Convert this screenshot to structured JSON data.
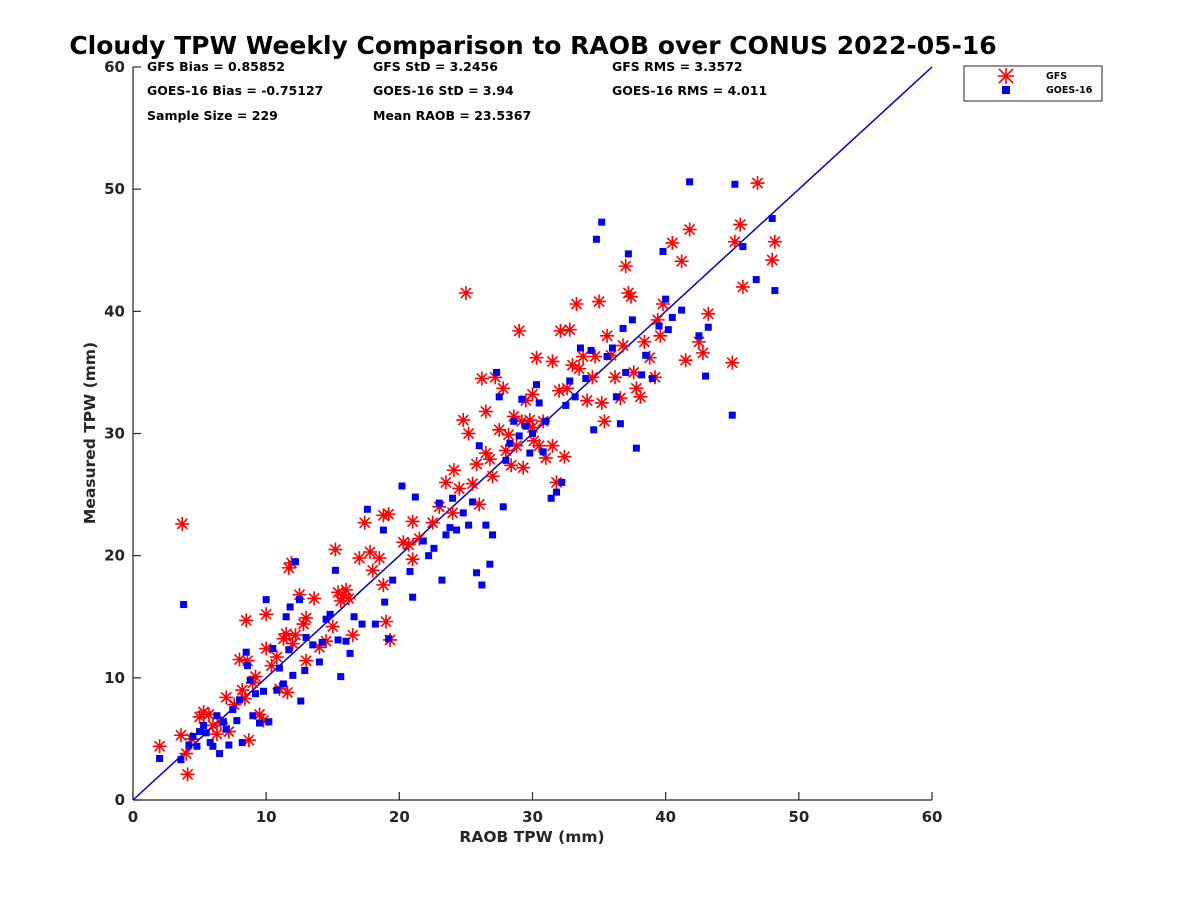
{
  "chart_data": {
    "type": "scatter",
    "title": "Cloudy TPW Weekly Comparison to RAOB over CONUS 2022-05-16",
    "xlabel": "RAOB TPW (mm)",
    "ylabel": "Measured TPW (mm)",
    "xlim": [
      0,
      60
    ],
    "ylim": [
      0,
      60
    ],
    "xticks": [
      "0",
      "10",
      "20",
      "30",
      "40",
      "50",
      "60"
    ],
    "yticks": [
      "0",
      "10",
      "20",
      "30",
      "40",
      "50",
      "60"
    ],
    "grid": false,
    "legend_position": "top-right outside",
    "stats": {
      "gfs_bias": "GFS Bias = 0.85852",
      "gfs_std": "GFS StD = 3.2456",
      "gfs_rms": "GFS RMS = 3.3572",
      "goes_bias": "GOES-16 Bias = -0.75127",
      "goes_std": "GOES-16 StD = 3.94",
      "goes_rms": "GOES-16 RMS = 4.011",
      "sample_size": "Sample Size = 229",
      "mean_raob": "Mean RAOB = 23.5367"
    },
    "reference_line": {
      "x": [
        0,
        60
      ],
      "y": [
        0,
        60
      ],
      "color": "#0000cc"
    },
    "series": [
      {
        "name": "GFS",
        "marker": "asterisk",
        "color": "#ff0000",
        "points": [
          [
            2.0,
            4.4
          ],
          [
            3.6,
            5.3
          ],
          [
            3.7,
            22.6
          ],
          [
            4.0,
            3.8
          ],
          [
            4.1,
            2.1
          ],
          [
            4.4,
            5.0
          ],
          [
            5.0,
            6.8
          ],
          [
            5.3,
            7.2
          ],
          [
            5.7,
            7.0
          ],
          [
            6.0,
            6.1
          ],
          [
            6.3,
            5.4
          ],
          [
            6.6,
            6.3
          ],
          [
            7.0,
            8.4
          ],
          [
            7.2,
            5.6
          ],
          [
            7.6,
            7.8
          ],
          [
            8.0,
            11.5
          ],
          [
            8.2,
            9.0
          ],
          [
            8.4,
            8.3
          ],
          [
            8.6,
            11.4
          ],
          [
            8.7,
            4.9
          ],
          [
            8.5,
            14.7
          ],
          [
            9.0,
            9.6
          ],
          [
            9.2,
            10.1
          ],
          [
            9.5,
            7.0
          ],
          [
            9.8,
            6.5
          ],
          [
            10.0,
            15.2
          ],
          [
            10.0,
            12.4
          ],
          [
            10.4,
            11.0
          ],
          [
            10.8,
            11.7
          ],
          [
            11.0,
            9.1
          ],
          [
            11.3,
            13.2
          ],
          [
            11.5,
            13.6
          ],
          [
            11.6,
            8.8
          ],
          [
            11.7,
            19.0
          ],
          [
            11.9,
            19.4
          ],
          [
            12.0,
            12.8
          ],
          [
            12.2,
            13.5
          ],
          [
            12.5,
            16.8
          ],
          [
            12.8,
            14.4
          ],
          [
            13.0,
            11.4
          ],
          [
            13.0,
            14.9
          ],
          [
            13.6,
            16.5
          ],
          [
            14.0,
            12.5
          ],
          [
            14.5,
            13.0
          ],
          [
            15.0,
            14.2
          ],
          [
            15.2,
            20.5
          ],
          [
            15.4,
            17.0
          ],
          [
            15.6,
            16.3
          ],
          [
            15.8,
            16.8
          ],
          [
            16.0,
            17.2
          ],
          [
            16.2,
            16.5
          ],
          [
            16.5,
            13.5
          ],
          [
            17.0,
            19.8
          ],
          [
            17.4,
            22.7
          ],
          [
            17.8,
            20.3
          ],
          [
            18.0,
            18.8
          ],
          [
            18.5,
            19.8
          ],
          [
            18.8,
            17.6
          ],
          [
            18.8,
            23.3
          ],
          [
            19.0,
            14.6
          ],
          [
            19.2,
            23.4
          ],
          [
            19.3,
            13.1
          ],
          [
            20.3,
            21.1
          ],
          [
            20.7,
            20.9
          ],
          [
            21.0,
            22.8
          ],
          [
            21.0,
            19.7
          ],
          [
            21.5,
            21.4
          ],
          [
            22.5,
            22.7
          ],
          [
            23.0,
            24.0
          ],
          [
            23.5,
            26.0
          ],
          [
            24.0,
            23.5
          ],
          [
            24.1,
            27.0
          ],
          [
            24.5,
            25.5
          ],
          [
            24.8,
            31.1
          ],
          [
            25.0,
            41.5
          ],
          [
            25.2,
            30.0
          ],
          [
            25.5,
            25.9
          ],
          [
            25.8,
            27.5
          ],
          [
            26.0,
            24.2
          ],
          [
            26.2,
            34.5
          ],
          [
            26.5,
            28.4
          ],
          [
            26.5,
            31.8
          ],
          [
            26.8,
            27.9
          ],
          [
            27.0,
            26.5
          ],
          [
            27.2,
            34.6
          ],
          [
            27.5,
            30.3
          ],
          [
            27.8,
            33.7
          ],
          [
            28.0,
            28.6
          ],
          [
            28.2,
            29.9
          ],
          [
            28.4,
            27.4
          ],
          [
            28.6,
            31.4
          ],
          [
            28.8,
            29.0
          ],
          [
            29.0,
            38.4
          ],
          [
            29.2,
            31.0
          ],
          [
            29.3,
            27.2
          ],
          [
            29.5,
            32.7
          ],
          [
            29.8,
            31.1
          ],
          [
            30.0,
            30.5
          ],
          [
            30.0,
            33.2
          ],
          [
            30.1,
            29.4
          ],
          [
            30.3,
            36.2
          ],
          [
            30.5,
            29.0
          ],
          [
            30.8,
            31.0
          ],
          [
            31.0,
            28.0
          ],
          [
            31.5,
            35.9
          ],
          [
            31.5,
            29.0
          ],
          [
            31.8,
            26.0
          ],
          [
            32.0,
            33.5
          ],
          [
            32.1,
            38.4
          ],
          [
            32.4,
            28.1
          ],
          [
            32.6,
            33.7
          ],
          [
            32.8,
            38.5
          ],
          [
            33.0,
            35.6
          ],
          [
            33.3,
            40.6
          ],
          [
            33.5,
            35.3
          ],
          [
            33.8,
            36.3
          ],
          [
            34.1,
            32.7
          ],
          [
            34.5,
            34.6
          ],
          [
            34.7,
            36.3
          ],
          [
            35.0,
            40.8
          ],
          [
            35.2,
            32.5
          ],
          [
            35.4,
            31.0
          ],
          [
            35.6,
            38.0
          ],
          [
            35.9,
            36.4
          ],
          [
            36.2,
            34.6
          ],
          [
            36.6,
            32.9
          ],
          [
            36.8,
            37.2
          ],
          [
            37.0,
            43.7
          ],
          [
            37.2,
            41.5
          ],
          [
            37.4,
            41.2
          ],
          [
            37.6,
            35.0
          ],
          [
            37.8,
            33.7
          ],
          [
            38.1,
            33.0
          ],
          [
            38.4,
            37.5
          ],
          [
            38.8,
            36.2
          ],
          [
            39.2,
            34.6
          ],
          [
            39.4,
            39.3
          ],
          [
            39.6,
            38.0
          ],
          [
            39.8,
            40.6
          ],
          [
            40.5,
            45.6
          ],
          [
            41.2,
            44.1
          ],
          [
            41.5,
            36.0
          ],
          [
            41.8,
            46.7
          ],
          [
            42.5,
            37.5
          ],
          [
            42.8,
            36.6
          ],
          [
            43.2,
            39.8
          ],
          [
            45.0,
            35.8
          ],
          [
            45.2,
            45.7
          ],
          [
            45.6,
            47.1
          ],
          [
            45.8,
            42.0
          ],
          [
            46.9,
            50.5
          ],
          [
            48.0,
            44.2
          ],
          [
            48.2,
            45.7
          ]
        ]
      },
      {
        "name": "GOES-16",
        "marker": "square",
        "color": "#0000ee",
        "points": [
          [
            2.0,
            3.4
          ],
          [
            3.6,
            3.3
          ],
          [
            3.8,
            16.0
          ],
          [
            4.2,
            4.5
          ],
          [
            4.5,
            5.2
          ],
          [
            4.8,
            4.4
          ],
          [
            5.0,
            5.6
          ],
          [
            5.3,
            6.1
          ],
          [
            5.5,
            5.5
          ],
          [
            5.8,
            4.7
          ],
          [
            6.0,
            4.4
          ],
          [
            6.3,
            6.9
          ],
          [
            6.5,
            3.8
          ],
          [
            6.8,
            6.4
          ],
          [
            7.0,
            5.8
          ],
          [
            7.2,
            4.5
          ],
          [
            7.5,
            7.4
          ],
          [
            7.8,
            6.5
          ],
          [
            8.0,
            8.2
          ],
          [
            8.2,
            4.7
          ],
          [
            8.5,
            12.1
          ],
          [
            8.6,
            11.0
          ],
          [
            8.8,
            9.8
          ],
          [
            9.0,
            6.9
          ],
          [
            9.2,
            8.7
          ],
          [
            9.5,
            6.3
          ],
          [
            9.8,
            8.9
          ],
          [
            10.0,
            16.4
          ],
          [
            10.2,
            6.4
          ],
          [
            10.5,
            12.4
          ],
          [
            10.8,
            9.0
          ],
          [
            11.0,
            10.8
          ],
          [
            11.3,
            9.5
          ],
          [
            11.5,
            15.0
          ],
          [
            11.7,
            12.3
          ],
          [
            11.8,
            15.8
          ],
          [
            12.0,
            10.2
          ],
          [
            12.2,
            19.5
          ],
          [
            12.5,
            16.4
          ],
          [
            12.6,
            8.1
          ],
          [
            12.9,
            10.6
          ],
          [
            13.0,
            13.3
          ],
          [
            13.5,
            12.7
          ],
          [
            14.0,
            11.3
          ],
          [
            14.2,
            12.9
          ],
          [
            14.5,
            14.8
          ],
          [
            14.8,
            15.2
          ],
          [
            15.2,
            18.8
          ],
          [
            15.4,
            13.1
          ],
          [
            15.6,
            10.1
          ],
          [
            16.0,
            13.0
          ],
          [
            16.3,
            12.0
          ],
          [
            16.6,
            15.0
          ],
          [
            17.2,
            14.4
          ],
          [
            17.6,
            23.8
          ],
          [
            18.2,
            14.4
          ],
          [
            18.8,
            22.1
          ],
          [
            18.9,
            16.2
          ],
          [
            19.2,
            13.2
          ],
          [
            19.5,
            18.0
          ],
          [
            20.2,
            25.7
          ],
          [
            20.8,
            18.7
          ],
          [
            21.0,
            16.6
          ],
          [
            21.2,
            24.8
          ],
          [
            21.8,
            21.2
          ],
          [
            22.2,
            20.0
          ],
          [
            22.6,
            20.6
          ],
          [
            23.0,
            24.3
          ],
          [
            23.2,
            18.0
          ],
          [
            23.5,
            21.7
          ],
          [
            23.8,
            22.3
          ],
          [
            24.0,
            24.7
          ],
          [
            24.3,
            22.1
          ],
          [
            24.8,
            23.5
          ],
          [
            25.2,
            22.5
          ],
          [
            25.5,
            24.4
          ],
          [
            25.8,
            18.6
          ],
          [
            26.0,
            29.0
          ],
          [
            26.2,
            17.6
          ],
          [
            26.5,
            22.5
          ],
          [
            26.8,
            19.3
          ],
          [
            27.0,
            21.7
          ],
          [
            27.3,
            35.0
          ],
          [
            27.5,
            33.0
          ],
          [
            27.8,
            24.0
          ],
          [
            28.0,
            27.8
          ],
          [
            28.3,
            29.2
          ],
          [
            28.6,
            31.0
          ],
          [
            29.0,
            29.8
          ],
          [
            29.2,
            32.8
          ],
          [
            29.5,
            30.6
          ],
          [
            29.8,
            28.4
          ],
          [
            30.0,
            30.0
          ],
          [
            30.3,
            34.0
          ],
          [
            30.5,
            32.5
          ],
          [
            30.8,
            28.5
          ],
          [
            31.0,
            31.0
          ],
          [
            31.4,
            24.7
          ],
          [
            31.8,
            25.2
          ],
          [
            32.2,
            26.0
          ],
          [
            32.5,
            32.3
          ],
          [
            32.8,
            34.3
          ],
          [
            33.2,
            33.0
          ],
          [
            33.6,
            37.0
          ],
          [
            34.0,
            34.5
          ],
          [
            34.4,
            36.8
          ],
          [
            34.6,
            30.3
          ],
          [
            34.8,
            45.9
          ],
          [
            35.2,
            47.3
          ],
          [
            35.6,
            36.3
          ],
          [
            36.0,
            37.0
          ],
          [
            36.3,
            33.0
          ],
          [
            36.6,
            30.8
          ],
          [
            36.8,
            38.6
          ],
          [
            37.0,
            35.0
          ],
          [
            37.2,
            44.7
          ],
          [
            37.5,
            39.3
          ],
          [
            37.8,
            28.8
          ],
          [
            38.2,
            34.8
          ],
          [
            38.5,
            36.4
          ],
          [
            39.0,
            34.5
          ],
          [
            39.5,
            38.8
          ],
          [
            39.8,
            44.9
          ],
          [
            40.0,
            41.0
          ],
          [
            40.2,
            38.5
          ],
          [
            40.5,
            39.5
          ],
          [
            41.2,
            40.1
          ],
          [
            41.8,
            50.6
          ],
          [
            42.5,
            38.0
          ],
          [
            43.0,
            34.7
          ],
          [
            43.2,
            38.7
          ],
          [
            45.0,
            31.5
          ],
          [
            45.2,
            50.4
          ],
          [
            45.8,
            45.3
          ],
          [
            46.8,
            42.6
          ],
          [
            48.0,
            47.6
          ],
          [
            48.2,
            41.7
          ]
        ]
      }
    ]
  }
}
